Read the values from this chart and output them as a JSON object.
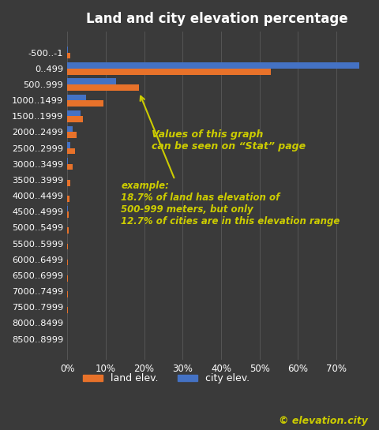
{
  "title": "Land and city elevation percentage",
  "background_color": "#3a3a3a",
  "text_color": "#ffffff",
  "categories": [
    "-500..-1",
    "0..499",
    "500..999",
    "1000..1499",
    "1500..1999",
    "2000..2499",
    "2500..2999",
    "3000..3499",
    "3500..3999",
    "4000..4499",
    "4500..4999",
    "5000..5499",
    "5500..5999",
    "6000..6499",
    "6500..6999",
    "7000..7499",
    "7500..7999",
    "8000..8499",
    "8500..8999"
  ],
  "land_values": [
    0.8,
    53.0,
    18.7,
    9.5,
    4.0,
    2.5,
    2.0,
    1.5,
    0.9,
    0.5,
    0.3,
    0.4,
    0.2,
    0.1,
    0.1,
    0.1,
    0.1,
    0.05,
    0.05
  ],
  "city_values": [
    0.2,
    76.0,
    12.7,
    5.0,
    3.5,
    1.5,
    0.8,
    0.2,
    0.0,
    0.0,
    0.1,
    0.0,
    0.0,
    0.0,
    0.0,
    0.0,
    0.0,
    0.0,
    0.0
  ],
  "land_color": "#e8722a",
  "city_color": "#4472c4",
  "grid_color": "#555555",
  "annotation_color": "#cccc00",
  "annotation_text1": "Values of this graph\ncan be seen on “Stat” page",
  "annotation_text2": "example:\n18.7% of land has elevation of\n500-999 meters, but only\n12.7% of cities are in this elevation range",
  "watermark": "© elevation.city",
  "watermark_color": "#cccc00",
  "xlim": [
    0,
    78
  ],
  "xtick_labels": [
    "0%",
    "10%",
    "20%",
    "30%",
    "40%",
    "50%",
    "60%",
    "70%"
  ],
  "xtick_values": [
    0,
    10,
    20,
    30,
    40,
    50,
    60,
    70
  ],
  "legend_labels": [
    "land elev.",
    "city elev."
  ]
}
